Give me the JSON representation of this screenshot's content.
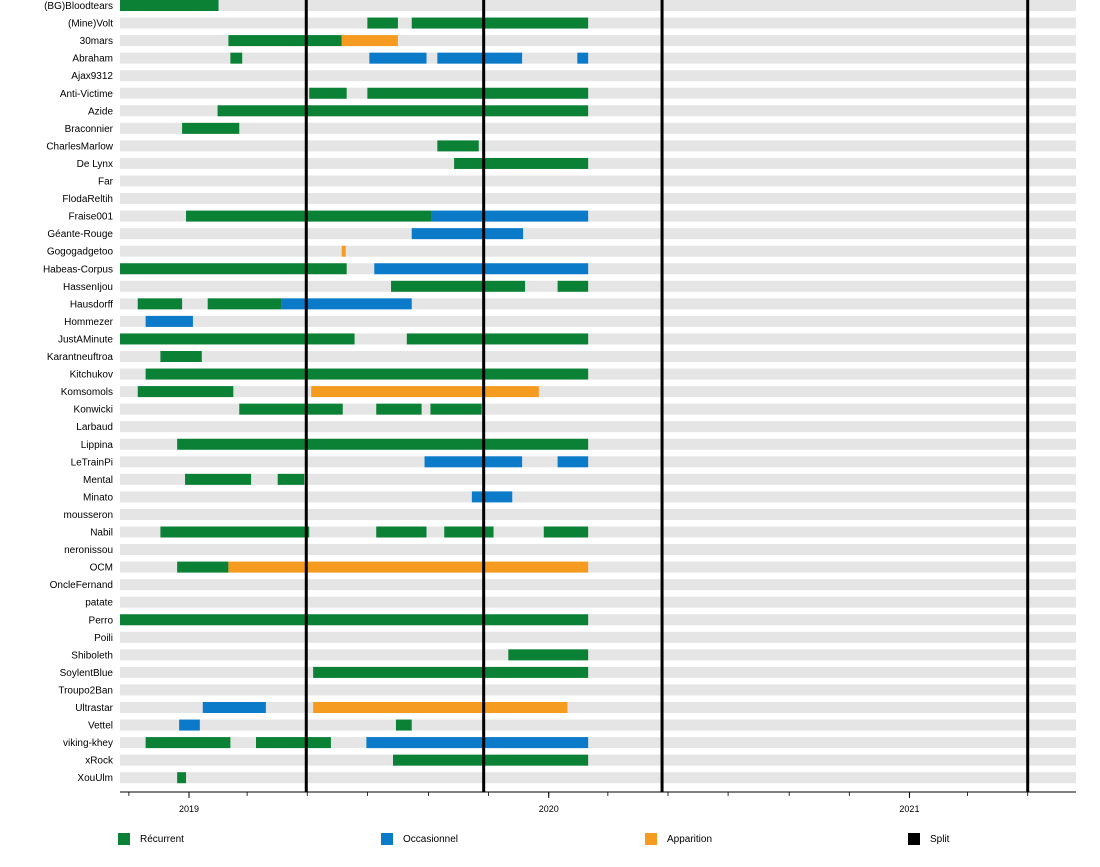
{
  "chart_data": {
    "type": "timeline",
    "title": "",
    "xlabel": "",
    "ylabel": "",
    "x_ticks": [
      "2019",
      "2020",
      "2021"
    ],
    "xlim": [
      "2018-10-23",
      "2021-06-19"
    ],
    "categories": [
      "(BG)Bloodtears",
      "(Mine)Volt",
      "30mars",
      "Abraham",
      "Ajax9312",
      "Anti-Victime",
      "Azide",
      "Braconnier",
      "CharlesMarlow",
      "De Lynx",
      "Far",
      "FlodaReltih",
      "Fraise001",
      "Géante-Rouge",
      "Gogogadgetoo",
      "Habeas-Corpus",
      "HassenIjou",
      "Hausdorff",
      "Hommezer",
      "JustAMinute",
      "Karantneuftroa",
      "Kitchukov",
      "Komsomols",
      "Konwicki",
      "Larbaud",
      "Lippina",
      "LeTrainPi",
      "Mental",
      "Minato",
      "mousseron",
      "Nabil",
      "neronissou",
      "OCM",
      "OncleFernand",
      "patate",
      "Perro",
      "Poili",
      "Shiboleth",
      "SoylentBlue",
      "Troupo2Ban",
      "Ultrastar",
      "Vettel",
      "viking-khey",
      "xRock",
      "XouUlm"
    ],
    "legend": [
      {
        "key": "recurrent",
        "label": "Récurrent",
        "color": "#0a8134"
      },
      {
        "key": "occasional",
        "label": "Occasionnel",
        "color": "#0a7ac9"
      },
      {
        "key": "apparition",
        "label": "Apparition",
        "color": "#f59b20"
      },
      {
        "key": "split",
        "label": "Split",
        "color": "#000000"
      }
    ],
    "splits": [
      "2019-04-30",
      "2019-10-27",
      "2020-04-25",
      "2021-05-01"
    ],
    "bars": [
      {
        "row": "(BG)Bloodtears",
        "start": "2018-10-23",
        "end": "2019-01-31",
        "type": "recurrent"
      },
      {
        "row": "(Mine)Volt",
        "start": "2019-07-01",
        "end": "2019-08-01",
        "type": "recurrent"
      },
      {
        "row": "(Mine)Volt",
        "start": "2019-08-15",
        "end": "2020-02-10",
        "type": "recurrent"
      },
      {
        "row": "30mars",
        "start": "2019-02-10",
        "end": "2019-06-05",
        "type": "recurrent"
      },
      {
        "row": "30mars",
        "start": "2019-06-05",
        "end": "2019-08-01",
        "type": "apparition"
      },
      {
        "row": "Abraham",
        "start": "2019-02-12",
        "end": "2019-02-24",
        "type": "recurrent"
      },
      {
        "row": "Abraham",
        "start": "2019-07-03",
        "end": "2019-08-30",
        "type": "occasional"
      },
      {
        "row": "Abraham",
        "start": "2019-09-10",
        "end": "2019-12-05",
        "type": "occasional"
      },
      {
        "row": "Abraham",
        "start": "2020-01-30",
        "end": "2020-02-10",
        "type": "occasional"
      },
      {
        "row": "Anti-Victime",
        "start": "2019-05-03",
        "end": "2019-06-10",
        "type": "recurrent"
      },
      {
        "row": "Anti-Victime",
        "start": "2019-07-01",
        "end": "2020-02-10",
        "type": "recurrent"
      },
      {
        "row": "Azide",
        "start": "2019-01-30",
        "end": "2020-02-10",
        "type": "recurrent"
      },
      {
        "row": "Braconnier",
        "start": "2018-12-25",
        "end": "2019-02-21",
        "type": "recurrent"
      },
      {
        "row": "CharlesMarlow",
        "start": "2019-09-10",
        "end": "2019-10-22",
        "type": "recurrent"
      },
      {
        "row": "De Lynx",
        "start": "2019-09-27",
        "end": "2020-02-10",
        "type": "recurrent"
      },
      {
        "row": "Fraise001",
        "start": "2018-12-29",
        "end": "2019-09-04",
        "type": "recurrent"
      },
      {
        "row": "Fraise001",
        "start": "2019-09-04",
        "end": "2020-02-10",
        "type": "occasional"
      },
      {
        "row": "Géante-Rouge",
        "start": "2019-08-15",
        "end": "2019-12-06",
        "type": "occasional"
      },
      {
        "row": "Gogogadgetoo",
        "start": "2019-06-05",
        "end": "2019-06-09",
        "type": "apparition"
      },
      {
        "row": "Habeas-Corpus",
        "start": "2018-10-23",
        "end": "2019-06-10",
        "type": "recurrent"
      },
      {
        "row": "Habeas-Corpus",
        "start": "2019-07-08",
        "end": "2020-02-10",
        "type": "occasional"
      },
      {
        "row": "HassenIjou",
        "start": "2019-07-25",
        "end": "2019-12-08",
        "type": "recurrent"
      },
      {
        "row": "HassenIjou",
        "start": "2020-01-10",
        "end": "2020-02-10",
        "type": "recurrent"
      },
      {
        "row": "Hausdorff",
        "start": "2018-11-10",
        "end": "2018-12-25",
        "type": "recurrent"
      },
      {
        "row": "Hausdorff",
        "start": "2019-01-20",
        "end": "2019-04-05",
        "type": "recurrent"
      },
      {
        "row": "Hausdorff",
        "start": "2019-04-05",
        "end": "2019-08-15",
        "type": "occasional"
      },
      {
        "row": "Hommezer",
        "start": "2018-11-18",
        "end": "2019-01-05",
        "type": "occasional"
      },
      {
        "row": "JustAMinute",
        "start": "2018-10-23",
        "end": "2019-06-18",
        "type": "recurrent"
      },
      {
        "row": "JustAMinute",
        "start": "2019-08-10",
        "end": "2020-02-10",
        "type": "recurrent"
      },
      {
        "row": "Karantneuftroa",
        "start": "2018-12-03",
        "end": "2019-01-14",
        "type": "recurrent"
      },
      {
        "row": "Kitchukov",
        "start": "2018-11-18",
        "end": "2020-02-10",
        "type": "recurrent"
      },
      {
        "row": "Komsomols",
        "start": "2018-11-10",
        "end": "2019-02-15",
        "type": "recurrent"
      },
      {
        "row": "Komsomols",
        "start": "2019-05-05",
        "end": "2019-12-22",
        "type": "apparition"
      },
      {
        "row": "Konwicki",
        "start": "2019-02-21",
        "end": "2019-06-06",
        "type": "recurrent"
      },
      {
        "row": "Konwicki",
        "start": "2019-07-10",
        "end": "2019-08-25",
        "type": "recurrent"
      },
      {
        "row": "Konwicki",
        "start": "2019-09-03",
        "end": "2019-10-25",
        "type": "recurrent"
      },
      {
        "row": "Lippina",
        "start": "2018-12-20",
        "end": "2020-02-10",
        "type": "recurrent"
      },
      {
        "row": "LeTrainPi",
        "start": "2019-08-28",
        "end": "2019-12-05",
        "type": "occasional"
      },
      {
        "row": "LeTrainPi",
        "start": "2020-01-10",
        "end": "2020-02-10",
        "type": "occasional"
      },
      {
        "row": "Mental",
        "start": "2018-12-28",
        "end": "2019-03-05",
        "type": "recurrent"
      },
      {
        "row": "Mental",
        "start": "2019-04-01",
        "end": "2019-04-28",
        "type": "recurrent"
      },
      {
        "row": "Minato",
        "start": "2019-10-15",
        "end": "2019-11-25",
        "type": "occasional"
      },
      {
        "row": "Nabil",
        "start": "2018-12-03",
        "end": "2019-05-03",
        "type": "recurrent"
      },
      {
        "row": "Nabil",
        "start": "2019-07-10",
        "end": "2019-08-30",
        "type": "recurrent"
      },
      {
        "row": "Nabil",
        "start": "2019-09-17",
        "end": "2019-11-06",
        "type": "recurrent"
      },
      {
        "row": "Nabil",
        "start": "2019-12-27",
        "end": "2020-02-10",
        "type": "recurrent"
      },
      {
        "row": "OCM",
        "start": "2018-12-20",
        "end": "2019-02-10",
        "type": "recurrent"
      },
      {
        "row": "OCM",
        "start": "2019-02-10",
        "end": "2020-02-10",
        "type": "apparition"
      },
      {
        "row": "Perro",
        "start": "2018-10-23",
        "end": "2020-02-10",
        "type": "recurrent"
      },
      {
        "row": "Shiboleth",
        "start": "2019-11-21",
        "end": "2020-02-10",
        "type": "recurrent"
      },
      {
        "row": "SoylentBlue",
        "start": "2019-05-07",
        "end": "2020-02-10",
        "type": "recurrent"
      },
      {
        "row": "Ultrastar",
        "start": "2019-01-15",
        "end": "2019-03-20",
        "type": "occasional"
      },
      {
        "row": "Ultrastar",
        "start": "2019-05-07",
        "end": "2020-01-20",
        "type": "apparition"
      },
      {
        "row": "Vettel",
        "start": "2018-12-22",
        "end": "2019-01-12",
        "type": "occasional"
      },
      {
        "row": "Vettel",
        "start": "2019-07-30",
        "end": "2019-08-15",
        "type": "recurrent"
      },
      {
        "row": "viking-khey",
        "start": "2018-11-18",
        "end": "2019-02-12",
        "type": "recurrent"
      },
      {
        "row": "viking-khey",
        "start": "2019-03-10",
        "end": "2019-05-25",
        "type": "recurrent"
      },
      {
        "row": "viking-khey",
        "start": "2019-06-30",
        "end": "2020-02-10",
        "type": "occasional"
      },
      {
        "row": "xRock",
        "start": "2019-07-27",
        "end": "2020-02-10",
        "type": "recurrent"
      },
      {
        "row": "XouUlm",
        "start": "2018-12-20",
        "end": "2018-12-29",
        "type": "recurrent"
      }
    ]
  }
}
